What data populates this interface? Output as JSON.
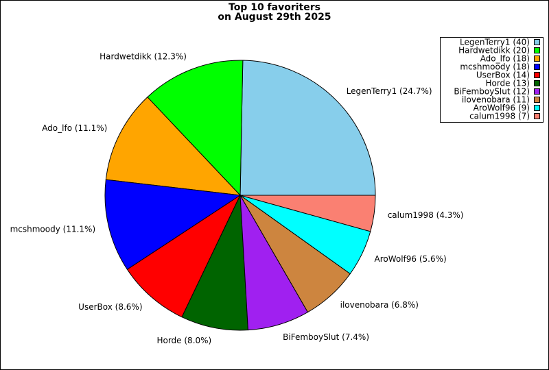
{
  "chart_data": {
    "type": "pie",
    "title": "Top 10 favoriters",
    "subtitle": "on August 29th 2025",
    "values": [
      40,
      20,
      18,
      18,
      14,
      13,
      12,
      11,
      9,
      7
    ],
    "slice_labels": [
      "LegenTerry1 (24.7%)",
      "Hardwetdikk (12.3%)",
      "Ado_lfo (11.1%)",
      "mcshmoody (11.1%)",
      "UserBox (8.6%)",
      "Horde (8.0%)",
      "BiFemboySlut (7.4%)",
      "ilovenobara (6.8%)",
      "AroWolf96 (5.6%)",
      "calum1998 (4.3%)"
    ],
    "legend_labels": [
      "LegenTerry1 (40)",
      "Hardwetdikk (20)",
      "Ado_lfo (18)",
      "mcshmoody (18)",
      "UserBox (14)",
      "Horde (13)",
      "BiFemboySlut (12)",
      "ilovenobara (11)",
      "AroWolf96 (9)",
      "calum1998 (7)"
    ],
    "colors": [
      "#87ceeb",
      "#00ff00",
      "#ffa500",
      "#0000ff",
      "#ff0000",
      "#006400",
      "#a020f0",
      "#cd853f",
      "#00ffff",
      "#fa8072"
    ],
    "legend": "upper right"
  }
}
